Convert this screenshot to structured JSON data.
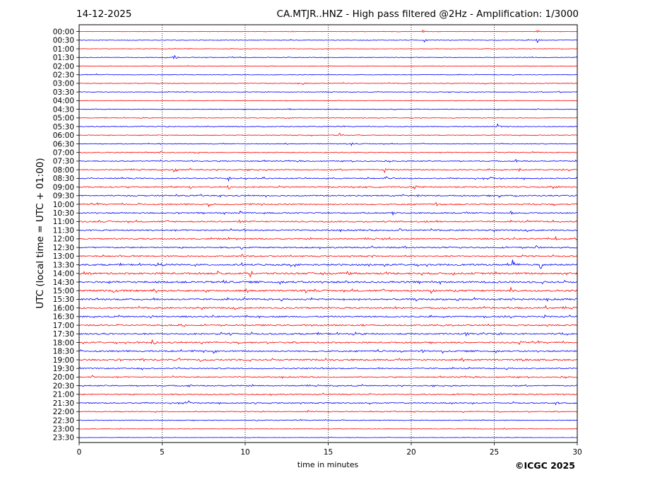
{
  "header": {
    "date": "14-12-2025",
    "title": "CA.MTJR..HNZ - High pass filtered @2Hz - Amplification: 1/3000"
  },
  "footer": {
    "copyright": "©ICGC 2025"
  },
  "colors": {
    "red_trace": "#ff0000",
    "blue_trace": "#0000ff",
    "grid": "#000000"
  },
  "chart_data": {
    "type": "line",
    "title": "CA.MTJR..HNZ - High pass filtered @2Hz - Amplification: 1/3000",
    "xlabel": "time in minutes",
    "ylabel": "UTC (local time = UTC + 01:00)",
    "xlim": [
      0,
      30
    ],
    "x_ticks": [
      "0",
      "5",
      "10",
      "15",
      "20",
      "25",
      "30"
    ],
    "grid": "vertical dotted at 5-minute ticks",
    "rows": [
      "00:00",
      "00:30",
      "01:00",
      "01:30",
      "02:00",
      "02:30",
      "03:00",
      "03:30",
      "04:00",
      "04:30",
      "05:00",
      "05:30",
      "06:00",
      "06:30",
      "07:00",
      "07:30",
      "08:00",
      "08:30",
      "09:00",
      "09:30",
      "10:00",
      "10:30",
      "11:00",
      "11:30",
      "12:00",
      "12:30",
      "13:00",
      "13:30",
      "14:00",
      "14:30",
      "15:00",
      "15:30",
      "16:00",
      "16:30",
      "17:00",
      "17:30",
      "18:00",
      "18:30",
      "19:00",
      "19:30",
      "20:00",
      "20:30",
      "21:00",
      "21:30",
      "22:00",
      "22:30",
      "23:00",
      "23:30"
    ],
    "row_colors": [
      "red",
      "blue"
    ],
    "noise_level": [
      0.3,
      0.5,
      0.4,
      0.5,
      0.4,
      0.5,
      0.6,
      0.5,
      0.4,
      0.5,
      0.5,
      0.6,
      0.6,
      0.6,
      0.7,
      0.8,
      0.9,
      0.9,
      1.0,
      1.0,
      1.0,
      1.0,
      1.1,
      1.1,
      1.0,
      1.1,
      1.0,
      1.3,
      1.5,
      1.5,
      1.4,
      1.3,
      1.2,
      1.1,
      1.1,
      1.2,
      1.1,
      1.2,
      1.3,
      0.9,
      0.9,
      0.9,
      0.9,
      0.9,
      0.7,
      0.6,
      0.4,
      0.3
    ],
    "events": [
      [
        {
          "t": 20.7,
          "a": 2
        },
        {
          "t": 27.6,
          "a": 3
        },
        {
          "t": 12.8,
          "a": 1.5
        }
      ],
      [
        {
          "t": 27.6,
          "a": 4
        },
        {
          "t": 20.8,
          "a": 3
        },
        {
          "t": 12.8,
          "a": 2
        }
      ],
      [],
      [
        {
          "t": 5.7,
          "a": 4
        }
      ],
      [],
      [
        {
          "t": 1.0,
          "a": 1.5
        }
      ],
      [
        {
          "t": 13.5,
          "a": 2.5
        }
      ],
      [
        {
          "t": 28.9,
          "a": 2.5
        }
      ],
      [],
      [
        {
          "t": 12.6,
          "a": 3
        }
      ],
      [],
      [
        {
          "t": 25.2,
          "a": 5
        }
      ],
      [
        {
          "t": 15.7,
          "a": 6
        },
        {
          "t": 13.6,
          "a": 1.5
        }
      ],
      [
        {
          "t": 16.4,
          "a": 2.5
        },
        {
          "t": 4.8,
          "a": 1.5
        }
      ],
      [
        {
          "t": 4.9,
          "a": 3
        }
      ],
      [
        {
          "t": 6.8,
          "a": 2.5
        },
        {
          "t": 26.3,
          "a": 3
        }
      ],
      [
        {
          "t": 5.7,
          "a": 5
        },
        {
          "t": 18.4,
          "a": 4
        },
        {
          "t": 26.5,
          "a": 3
        },
        {
          "t": 6.7,
          "a": 2
        }
      ],
      [
        {
          "t": 9.0,
          "a": 3.5
        },
        {
          "t": 18.5,
          "a": 3.5
        },
        {
          "t": 24.8,
          "a": 2.5
        }
      ],
      [
        {
          "t": 6.7,
          "a": 3
        },
        {
          "t": 9.0,
          "a": 3.5
        },
        {
          "t": 20.1,
          "a": 3
        },
        {
          "t": 28.3,
          "a": 2
        }
      ],
      [
        {
          "t": 10.9,
          "a": 3
        },
        {
          "t": 20.3,
          "a": 3
        },
        {
          "t": 25.3,
          "a": 2.5
        }
      ],
      [
        {
          "t": 7.8,
          "a": 3
        },
        {
          "t": 12.3,
          "a": 2.5
        },
        {
          "t": 21.5,
          "a": 3.5
        },
        {
          "t": 28.5,
          "a": 4
        }
      ],
      [
        {
          "t": 9.7,
          "a": 3
        },
        {
          "t": 18.9,
          "a": 3.5
        },
        {
          "t": 26.0,
          "a": 3
        }
      ],
      [
        {
          "t": 9.6,
          "a": 3.5
        },
        {
          "t": 20.8,
          "a": 3
        },
        {
          "t": 28.5,
          "a": 2.5
        }
      ],
      [
        {
          "t": 10.0,
          "a": 2.5
        },
        {
          "t": 19.3,
          "a": 3.5
        }
      ],
      [
        {
          "t": 18.3,
          "a": 2.5
        },
        {
          "t": 28.7,
          "a": 3
        }
      ],
      [
        {
          "t": 9.8,
          "a": 3
        },
        {
          "t": 19.6,
          "a": 3
        },
        {
          "t": 27.5,
          "a": 3
        }
      ],
      [
        {
          "t": 9.8,
          "a": 3
        },
        {
          "t": 17.7,
          "a": 4
        },
        {
          "t": 27.3,
          "a": 3
        }
      ],
      [
        {
          "t": 26.1,
          "a": 7
        },
        {
          "t": 27.8,
          "a": 8
        },
        {
          "t": 9.8,
          "a": 3
        },
        {
          "t": 5.0,
          "a": 2
        }
      ],
      [
        {
          "t": 0.3,
          "a": 5
        },
        {
          "t": 8.3,
          "a": 4
        },
        {
          "t": 10.3,
          "a": 4
        },
        {
          "t": 15.2,
          "a": 3.5
        },
        {
          "t": 16.3,
          "a": 3.5
        },
        {
          "t": 22.5,
          "a": 3
        },
        {
          "t": 29.3,
          "a": 3
        }
      ],
      [
        {
          "t": 8.7,
          "a": 4
        },
        {
          "t": 16.1,
          "a": 4
        },
        {
          "t": 19.2,
          "a": 2.5
        }
      ],
      [
        {
          "t": 2.1,
          "a": 4
        },
        {
          "t": 7.6,
          "a": 3.5
        },
        {
          "t": 13.6,
          "a": 3
        },
        {
          "t": 21.2,
          "a": 3.5
        },
        {
          "t": 26.0,
          "a": 5
        }
      ],
      [
        {
          "t": 14.0,
          "a": 3
        },
        {
          "t": 16.0,
          "a": 3
        },
        {
          "t": 22.8,
          "a": 7
        },
        {
          "t": 26.1,
          "a": 3
        }
      ],
      [
        {
          "t": 2.4,
          "a": 2
        },
        {
          "t": 19.0,
          "a": 3
        },
        {
          "t": 28.1,
          "a": 4
        }
      ],
      [
        {
          "t": 4.3,
          "a": 2.5
        },
        {
          "t": 24.4,
          "a": 3
        },
        {
          "t": 28.0,
          "a": 4
        }
      ],
      [
        {
          "t": 6.0,
          "a": 2.5
        },
        {
          "t": 17.0,
          "a": 3
        },
        {
          "t": 21.6,
          "a": 3
        }
      ],
      [
        {
          "t": 1.4,
          "a": 4
        },
        {
          "t": 9.1,
          "a": 3
        },
        {
          "t": 23.3,
          "a": 3
        },
        {
          "t": 29.0,
          "a": 4
        }
      ],
      [
        {
          "t": 4.4,
          "a": 5
        },
        {
          "t": 26.5,
          "a": 2.5
        }
      ],
      [
        {
          "t": 6.1,
          "a": 4
        },
        {
          "t": 8.1,
          "a": 3.5
        },
        {
          "t": 20.6,
          "a": 3
        },
        {
          "t": 21.9,
          "a": 3.5
        }
      ],
      [
        {
          "t": 3.8,
          "a": 3.5
        },
        {
          "t": 6.0,
          "a": 3
        },
        {
          "t": 7.3,
          "a": 3
        },
        {
          "t": 9.4,
          "a": 2.5
        }
      ],
      [
        {
          "t": 3.8,
          "a": 2
        }
      ],
      [
        {
          "t": 0.8,
          "a": 3
        },
        {
          "t": 6.1,
          "a": 2
        }
      ],
      [
        {
          "t": 6.6,
          "a": 2.5
        }
      ],
      [
        {
          "t": 9.0,
          "a": 2.5
        },
        {
          "t": 20.6,
          "a": 2
        }
      ],
      [
        {
          "t": 6.6,
          "a": 3
        },
        {
          "t": 10.6,
          "a": 2.5
        },
        {
          "t": 28.7,
          "a": 3
        }
      ],
      [
        {
          "t": 13.8,
          "a": 2.5
        },
        {
          "t": 14.3,
          "a": 2
        }
      ],
      [
        {
          "t": 10.7,
          "a": 2.5
        }
      ],
      [
        {
          "t": 2.5,
          "a": 1.5
        },
        {
          "t": 23.8,
          "a": 1.5
        },
        {
          "t": 25.6,
          "a": 1.5
        }
      ],
      []
    ]
  }
}
